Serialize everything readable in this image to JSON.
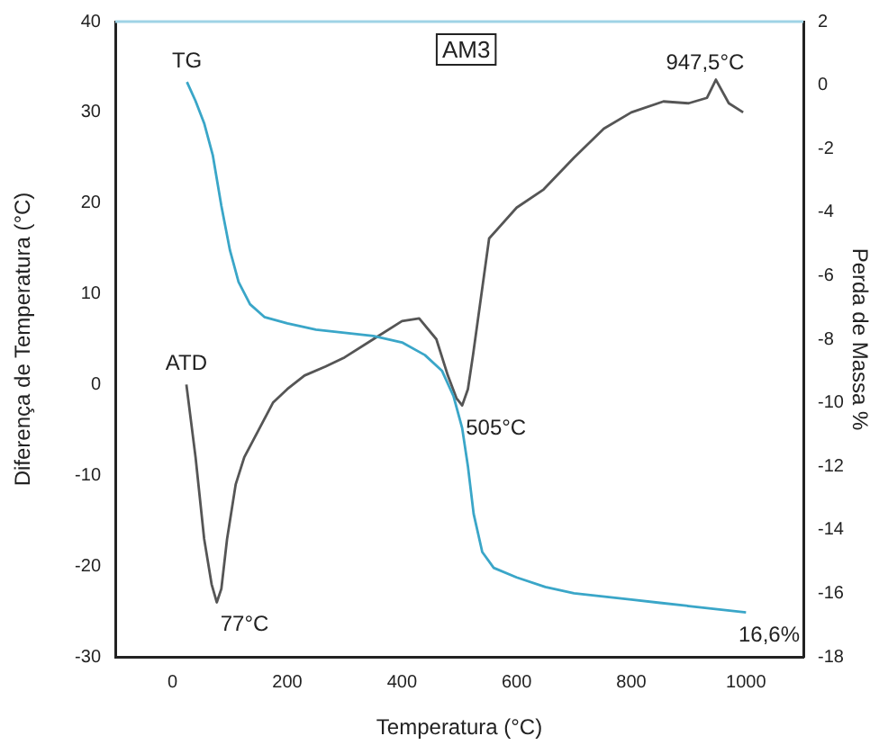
{
  "chart_data": {
    "type": "line",
    "title": "AM3",
    "xlabel": "Temperatura (°C)",
    "ylabel": "Diferença de Temperatura (°C)",
    "y2label": "Perda de Massa %",
    "xlim": [
      -100,
      1100
    ],
    "xticks": [
      0,
      200,
      400,
      600,
      800,
      1000
    ],
    "ylim": [
      -30,
      40
    ],
    "yticks": [
      -30,
      -20,
      -10,
      0,
      10,
      20,
      30,
      40
    ],
    "y2lim": [
      -18,
      2
    ],
    "y2ticks": [
      -18,
      -16,
      -14,
      -12,
      -10,
      -8,
      -6,
      -4,
      -2,
      0,
      2
    ],
    "marker": "none",
    "series": [
      {
        "name": "TG",
        "color": "#3aa6c8",
        "axis": "y2",
        "x": [
          25,
          40,
          55,
          70,
          85,
          100,
          115,
          135,
          160,
          200,
          250,
          300,
          350,
          400,
          440,
          470,
          490,
          505,
          515,
          525,
          540,
          560,
          600,
          650,
          700,
          750,
          800,
          850,
          900,
          950,
          1000
        ],
        "values": [
          0.1,
          -0.5,
          -1.2,
          -2.2,
          -3.8,
          -5.2,
          -6.2,
          -6.9,
          -7.3,
          -7.5,
          -7.7,
          -7.8,
          -7.9,
          -8.1,
          -8.5,
          -9.0,
          -9.8,
          -10.8,
          -12.0,
          -13.5,
          -14.7,
          -15.2,
          -15.5,
          -15.8,
          -16.0,
          -16.1,
          -16.2,
          -16.3,
          -16.4,
          -16.5,
          -16.6
        ]
      },
      {
        "name": "ATD",
        "color": "#555555",
        "axis": "y",
        "x": [
          24,
          40,
          55,
          68,
          77,
          85,
          95,
          110,
          125,
          150,
          175,
          200,
          230,
          267,
          300,
          350,
          400,
          430,
          460,
          480,
          495,
          505,
          515,
          524,
          552,
          600,
          647,
          700,
          752,
          800,
          856,
          900,
          932,
          947.5,
          970,
          995
        ],
        "values": [
          0,
          -8,
          -17,
          -22,
          -24,
          -22.5,
          -17,
          -11,
          -8,
          -5,
          -2,
          -0.5,
          1,
          2,
          3,
          5,
          7,
          7.3,
          5,
          1,
          -1.5,
          -2.3,
          -0.5,
          3.3,
          16.1,
          19.5,
          21.5,
          25,
          28.2,
          30,
          31.2,
          31,
          31.6,
          33.6,
          31,
          30
        ]
      }
    ],
    "annotations": [
      {
        "text": "77°C",
        "x": 77,
        "y": -24
      },
      {
        "text": "505°C",
        "x": 505,
        "y": -2.3
      },
      {
        "text": "947,5°C",
        "x": 947.5,
        "y": 33.6
      },
      "16,6%"
    ]
  }
}
